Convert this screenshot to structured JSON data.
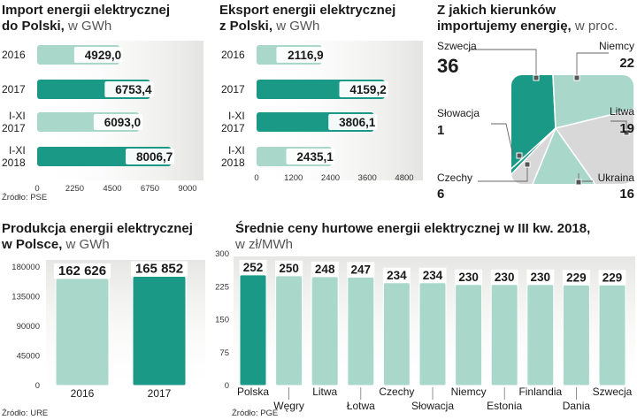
{
  "chart_data": [
    {
      "id": "import",
      "type": "bar",
      "orientation": "horizontal",
      "title_line1": "Import energii elektrycznej",
      "title_line2": "do Polski,",
      "unit": "w GWh",
      "categories": [
        [
          "2016"
        ],
        [
          "2017"
        ],
        [
          "I-XI",
          "2017"
        ],
        [
          "I-XI",
          "2018"
        ]
      ],
      "values": [
        4929.0,
        6753.4,
        6093.0,
        8006.7
      ],
      "value_labels": [
        "4929,0",
        "6753,4",
        "6093,0",
        "8006,7"
      ],
      "highlight": [
        false,
        true,
        false,
        true
      ],
      "ticks": [
        "0",
        "2250",
        "4500",
        "6750",
        "9000"
      ],
      "xlim": [
        0,
        9000
      ],
      "source": "Źródło: PSE"
    },
    {
      "id": "export",
      "type": "bar",
      "orientation": "horizontal",
      "title_line1": "Eksport energii elektrycznej",
      "title_line2": "z Polski,",
      "unit": "w GWh",
      "categories": [
        [
          "2016"
        ],
        [
          "2017"
        ],
        [
          "I-XI",
          "2017"
        ],
        [
          "I-XI",
          "2018"
        ]
      ],
      "values": [
        2116.9,
        4159.2,
        3806.1,
        2435.1
      ],
      "value_labels": [
        "2116,9",
        "4159,2",
        "3806,1",
        "2435,1"
      ],
      "highlight": [
        false,
        true,
        true,
        false
      ],
      "ticks": [
        "0",
        "1200",
        "2400",
        "3600",
        "4800"
      ],
      "xlim": [
        0,
        4800
      ]
    },
    {
      "id": "directions",
      "type": "pie",
      "title_line1": "Z jakich kierunków",
      "title_line2": "importujemy energię,",
      "unit": "w proc.",
      "slices": [
        {
          "name": "Szwecja",
          "value": 36,
          "label": "36"
        },
        {
          "name": "Niemcy",
          "value": 22,
          "label": "22"
        },
        {
          "name": "Litwa",
          "value": 19,
          "label": "19"
        },
        {
          "name": "Ukraina",
          "value": 16,
          "label": "16"
        },
        {
          "name": "Czechy",
          "value": 6,
          "label": "6"
        },
        {
          "name": "Słowacja",
          "value": 1,
          "label": "1"
        }
      ]
    },
    {
      "id": "production",
      "type": "bar",
      "orientation": "vertical",
      "title_line1": "Produkcja energii elektrycznej",
      "title_line2": "w Polsce,",
      "unit": "w GWh",
      "categories": [
        "2016",
        "2017"
      ],
      "values": [
        162626,
        165852
      ],
      "value_labels": [
        "162 626",
        "165 852"
      ],
      "highlight": [
        false,
        true
      ],
      "ticks": [
        "0",
        "45000",
        "90000",
        "135000",
        "180000"
      ],
      "ylim": [
        0,
        180000
      ],
      "source": "Źródło: URE"
    },
    {
      "id": "prices",
      "type": "bar",
      "orientation": "vertical",
      "title_line1": "Średnie ceny hurtowe energii elektrycznej w III kw. 2018,",
      "unit": "w zł/MWh",
      "categories": [
        "Polska",
        "Węgry",
        "Litwa",
        "Łotwa",
        "Czechy",
        "Słowacja",
        "Niemcy",
        "Estonia",
        "Finlandia",
        "Dania",
        "Szwecja"
      ],
      "values": [
        252,
        250,
        248,
        247,
        234,
        234,
        230,
        230,
        230,
        229,
        229
      ],
      "value_labels": [
        "252",
        "250",
        "248",
        "247",
        "234",
        "234",
        "230",
        "230",
        "230",
        "229",
        "229"
      ],
      "highlight": [
        true,
        false,
        false,
        false,
        false,
        false,
        false,
        false,
        false,
        false,
        false
      ],
      "ticks": [
        "0",
        "75",
        "150",
        "225",
        "300"
      ],
      "ylim": [
        0,
        300
      ],
      "source": "Źródło: PGE"
    }
  ],
  "colors": {
    "dark": "#1a9a86",
    "light": "#a9d8cb",
    "gray": "#d8d8d8",
    "shade": "#e7e7e7",
    "marker": "#555555"
  }
}
